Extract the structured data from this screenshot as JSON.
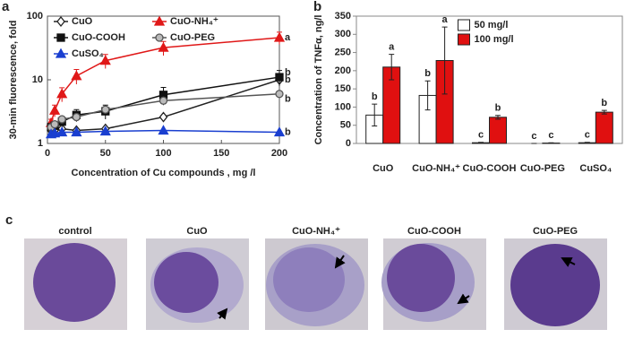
{
  "chart_data": [
    {
      "type": "line",
      "panel_label": "a",
      "x_label": "Concentration of Cu compounds , mg /l",
      "y_label": "30-min fluorescence, fold",
      "x": [
        3.125,
        6.25,
        12.5,
        25,
        50,
        100,
        200
      ],
      "xlim": [
        0,
        200
      ],
      "xticks": [
        0,
        50,
        100,
        150,
        200
      ],
      "yscale": "log",
      "ylim": [
        1,
        100
      ],
      "yticks": [
        1,
        10,
        100
      ],
      "series": [
        {
          "name": "CuO",
          "color": "#222222",
          "marker": "diamond",
          "marker_fill": "#ffffff",
          "values": [
            1.6,
            1.6,
            1.7,
            1.6,
            1.7,
            2.6,
            10
          ],
          "end_label": "b"
        },
        {
          "name": "CuO-NH₄⁺",
          "color": "#e01818",
          "marker": "triangle",
          "marker_fill": "#e01818",
          "values": [
            2.1,
            3.3,
            6,
            11.5,
            20,
            32,
            46
          ],
          "errors": [
            0.3,
            0.7,
            1.5,
            3,
            5,
            8,
            10
          ],
          "end_label": "a"
        },
        {
          "name": "CuO-COOH",
          "color": "#111111",
          "marker": "square",
          "marker_fill": "#111111",
          "values": [
            1.8,
            1.9,
            2.2,
            2.8,
            3.2,
            5.8,
            11
          ],
          "errors": [
            0.2,
            0.3,
            0.4,
            0.6,
            0.8,
            1.8,
            3
          ],
          "end_label": "b"
        },
        {
          "name": "CuO-PEG",
          "color": "#555555",
          "marker": "circle",
          "marker_fill": "#bbbbbb",
          "values": [
            1.8,
            2,
            2.4,
            2.6,
            3.4,
            4.7,
            6
          ],
          "end_label": "b"
        },
        {
          "name": "CuSO₄",
          "color": "#1a3fd0",
          "marker": "triangle",
          "marker_fill": "#1a3fd0",
          "values": [
            1.4,
            1.45,
            1.5,
            1.5,
            1.55,
            1.6,
            1.5
          ],
          "end_label": "b"
        }
      ]
    },
    {
      "type": "bar",
      "panel_label": "b",
      "y_label": "Concentration of TNFα, ng/l",
      "categories": [
        "CuO",
        "CuO-NH₄⁺",
        "CuO-COOH",
        "CuO-PEG",
        "CuSO₄"
      ],
      "ylim": [
        0,
        350
      ],
      "yticks": [
        0,
        50,
        100,
        150,
        200,
        250,
        300,
        350
      ],
      "legend": "upper center",
      "series": [
        {
          "name": "50 mg/l",
          "color": "#ffffff",
          "values": [
            78,
            132,
            2,
            0,
            2
          ],
          "errors": [
            30,
            40,
            1,
            0,
            1
          ],
          "letters": [
            "b",
            "b",
            "c",
            "c",
            "c"
          ]
        },
        {
          "name": "100 mg/l",
          "color": "#e01010",
          "values": [
            210,
            228,
            72,
            1,
            86
          ],
          "errors": [
            35,
            92,
            5,
            1,
            5
          ],
          "letters": [
            "a",
            "a",
            "b",
            "c",
            "b"
          ]
        }
      ]
    }
  ],
  "panel_c": {
    "label": "c",
    "captions": [
      "control",
      "CuO",
      "CuO-NH₄⁺",
      "CuO-COOH",
      "CuO-PEG"
    ]
  }
}
